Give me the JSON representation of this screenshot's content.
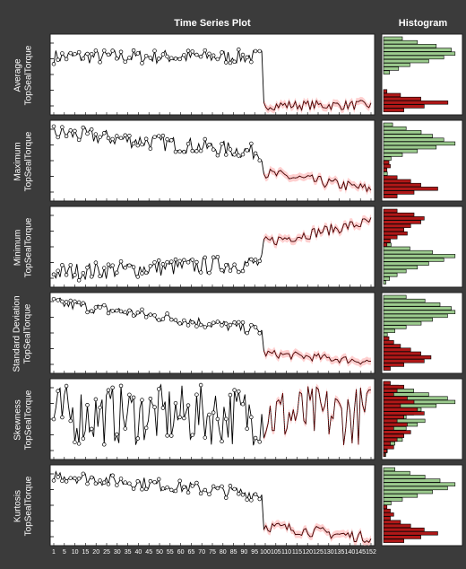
{
  "headers": {
    "time_series": "Time Series Plot",
    "histogram": "Histogram"
  },
  "colors": {
    "panel": "#ffffff",
    "line": "#000000",
    "marker_fill": "#ffffff",
    "test_line": "#c80000",
    "test_band": "#ffb0b0",
    "hist_green": "#9ccb8e",
    "hist_red": "#b01818",
    "background": "#3b3b3b"
  },
  "chart_data": [
    {
      "type": "line",
      "ylabel": [
        "Average",
        "TopSealTorque"
      ],
      "trend": "train ~flat high (points 1-100), test drops sharply (points 101-152)",
      "x_ticks": [
        "1",
        "5",
        "10",
        "15",
        "20",
        "25",
        "30",
        "35",
        "40",
        "45",
        "50",
        "55",
        "60",
        "65",
        "70",
        "75",
        "80",
        "85",
        "90",
        "95",
        "100",
        "105",
        "110",
        "115",
        "120",
        "125",
        "130",
        "135",
        "140",
        "145",
        "152"
      ],
      "train_range": [
        1,
        100
      ],
      "test_range": [
        101,
        152
      ]
    },
    {
      "type": "line",
      "ylabel": [
        "Maximum",
        "TopSealTorque"
      ],
      "trend": "train slowly declining from high, test drops further",
      "x_ticks": [
        "1",
        "5",
        "10",
        "15",
        "20",
        "25",
        "30",
        "35",
        "40",
        "45",
        "50",
        "55",
        "60",
        "65",
        "70",
        "75",
        "80",
        "85",
        "90",
        "95",
        "100",
        "105",
        "110",
        "115",
        "120",
        "125",
        "130",
        "135",
        "140",
        "145",
        "152"
      ],
      "train_range": [
        1,
        100
      ],
      "test_range": [
        101,
        152
      ]
    },
    {
      "type": "line",
      "ylabel": [
        "Minimum",
        "TopSealTorque"
      ],
      "trend": "train low and noisy slightly rising, test rises high",
      "x_ticks": [
        "1",
        "5",
        "10",
        "15",
        "20",
        "25",
        "30",
        "35",
        "40",
        "45",
        "50",
        "55",
        "60",
        "65",
        "70",
        "75",
        "80",
        "85",
        "90",
        "95",
        "100",
        "105",
        "110",
        "115",
        "120",
        "125",
        "130",
        "135",
        "140",
        "145",
        "152"
      ],
      "train_range": [
        1,
        100
      ],
      "test_range": [
        101,
        152
      ]
    },
    {
      "type": "line",
      "ylabel": [
        "Standard Deviation",
        "TopSealTorque"
      ],
      "trend": "train declining from high, test low",
      "x_ticks": [
        "1",
        "5",
        "10",
        "15",
        "20",
        "25",
        "30",
        "35",
        "40",
        "45",
        "50",
        "55",
        "60",
        "65",
        "70",
        "75",
        "80",
        "85",
        "90",
        "95",
        "100",
        "105",
        "110",
        "115",
        "120",
        "125",
        "130",
        "135",
        "140",
        "145",
        "152"
      ],
      "train_range": [
        1,
        100
      ],
      "test_range": [
        101,
        152
      ]
    },
    {
      "type": "line",
      "ylabel": [
        "Skewness",
        "TopSealTorque"
      ],
      "trend": "noisy throughout, no shift",
      "x_ticks": [
        "1",
        "5",
        "10",
        "15",
        "20",
        "25",
        "30",
        "35",
        "40",
        "45",
        "50",
        "55",
        "60",
        "65",
        "70",
        "75",
        "80",
        "85",
        "90",
        "95",
        "100",
        "105",
        "110",
        "115",
        "120",
        "125",
        "130",
        "135",
        "140",
        "145",
        "152"
      ],
      "train_range": [
        1,
        100
      ],
      "test_range": [
        101,
        152
      ]
    },
    {
      "type": "line",
      "ylabel": [
        "Kurtosis",
        "TopSealTorque"
      ],
      "trend": "train declining slowly from high, test drops low",
      "x_ticks": [
        "1",
        "5",
        "10",
        "15",
        "20",
        "25",
        "30",
        "35",
        "40",
        "45",
        "50",
        "55",
        "60",
        "65",
        "70",
        "75",
        "80",
        "85",
        "90",
        "95",
        "100",
        "105",
        "110",
        "115",
        "120",
        "125",
        "130",
        "135",
        "140",
        "145",
        "152"
      ],
      "train_range": [
        1,
        100
      ],
      "test_range": [
        101,
        152
      ]
    }
  ],
  "histograms": [
    {
      "green": [
        0.25,
        0.45,
        0.7,
        0.9,
        0.95,
        0.8,
        0.6,
        0.35,
        0.2,
        0.08,
        0,
        0,
        0,
        0,
        0,
        0,
        0,
        0,
        0,
        0
      ],
      "red": [
        0,
        0,
        0,
        0,
        0,
        0,
        0,
        0,
        0,
        0,
        0,
        0,
        0,
        0,
        0.05,
        0.25,
        0.55,
        0.95,
        0.6,
        0.3
      ]
    },
    {
      "green": [
        0.12,
        0.3,
        0.5,
        0.65,
        0.8,
        0.95,
        0.7,
        0.45,
        0.25,
        0.1,
        0.03,
        0,
        0,
        0.05,
        0,
        0,
        0,
        0,
        0,
        0
      ],
      "red": [
        0,
        0,
        0,
        0,
        0,
        0,
        0,
        0,
        0,
        0,
        0.08,
        0.1,
        0.05,
        0,
        0.2,
        0.4,
        0.55,
        0.8,
        0.45,
        0.2
      ]
    },
    {
      "green": [
        0,
        0,
        0,
        0,
        0,
        0,
        0,
        0,
        0,
        0.1,
        0.35,
        0.65,
        0.95,
        0.8,
        0.6,
        0.45,
        0.3,
        0.18,
        0.08,
        0.03
      ],
      "red": [
        0.2,
        0.45,
        0.6,
        0.55,
        0.4,
        0.3,
        0.35,
        0.2,
        0.1,
        0.05,
        0,
        0,
        0,
        0,
        0,
        0,
        0,
        0,
        0,
        0
      ]
    },
    {
      "green": [
        0.3,
        0.55,
        0.75,
        0.9,
        0.95,
        0.85,
        0.65,
        0.5,
        0.3,
        0.15,
        0.05,
        0,
        0,
        0,
        0,
        0,
        0,
        0,
        0,
        0
      ],
      "red": [
        0,
        0,
        0,
        0,
        0,
        0,
        0,
        0,
        0,
        0,
        0,
        0.08,
        0.15,
        0.25,
        0.4,
        0.55,
        0.7,
        0.6,
        0.3,
        0.1
      ]
    },
    {
      "green": [
        0.08,
        0.2,
        0.4,
        0.6,
        0.85,
        0.95,
        0.7,
        0.5,
        0.4,
        0.3,
        0.55,
        0.45,
        0.3,
        0.2,
        0.15,
        0.25,
        0.15,
        0.1,
        0.05,
        0.03
      ],
      "red": [
        0.1,
        0.3,
        0.2,
        0.15,
        0.35,
        0.45,
        0.25,
        0.5,
        0.6,
        0.3,
        0.2,
        0.35,
        0.15,
        0.4,
        0.3,
        0.2,
        0.1,
        0.15,
        0.05,
        0.02
      ]
    },
    {
      "green": [
        0.15,
        0.35,
        0.55,
        0.75,
        0.95,
        0.85,
        0.65,
        0.45,
        0.25,
        0.1,
        0.03,
        0,
        0,
        0,
        0,
        0,
        0,
        0,
        0,
        0
      ],
      "red": [
        0,
        0,
        0,
        0,
        0,
        0,
        0,
        0,
        0,
        0,
        0.05,
        0.1,
        0.15,
        0.1,
        0.25,
        0.4,
        0.6,
        0.8,
        0.55,
        0.3
      ]
    }
  ]
}
